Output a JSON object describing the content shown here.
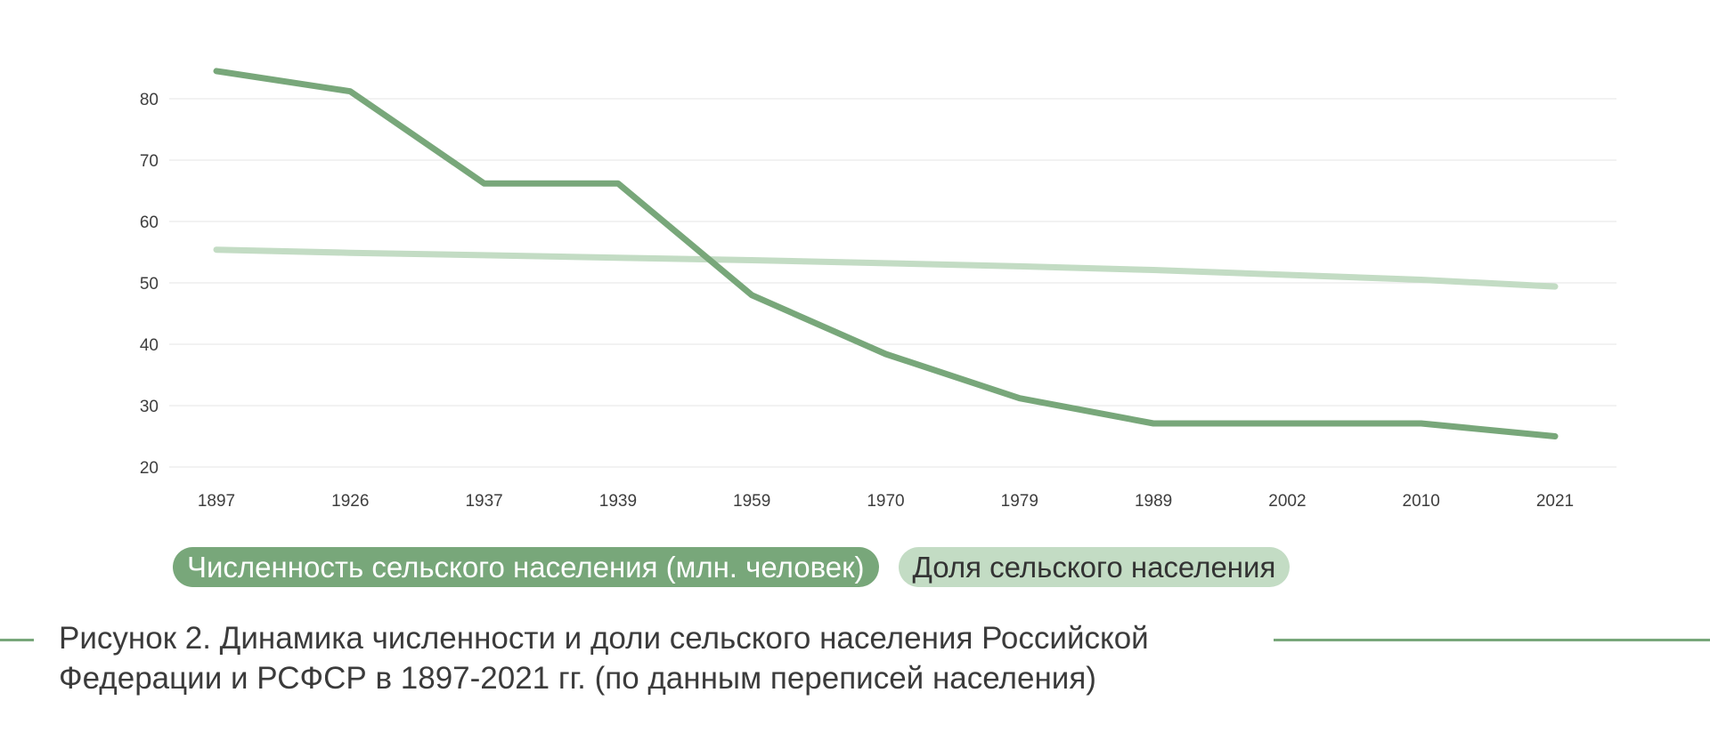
{
  "colors": {
    "series_dark": "#78a77a",
    "series_light": "#c3dcc4",
    "grid": "#e4e4e4",
    "caption_rule": "#78a77a"
  },
  "chart_data": {
    "type": "line",
    "x": [
      "1897",
      "1926",
      "1937",
      "1939",
      "1959",
      "1970",
      "1979",
      "1989",
      "2002",
      "2010",
      "2021"
    ],
    "ylim": [
      20,
      85
    ],
    "yticks": [
      20,
      30,
      40,
      50,
      60,
      70,
      80
    ],
    "grid": true,
    "legend_position": "bottom-left",
    "series": [
      {
        "name": "Численность сельского населения (млн. человек)",
        "color": "#78a77a",
        "values": [
          84.5,
          81.2,
          66.2,
          66.2,
          48.0,
          38.4,
          31.2,
          27.1,
          27.1,
          27.1,
          25.0
        ]
      },
      {
        "name": "Доля сельского населения",
        "color": "#c3dcc4",
        "values": [
          55.4,
          54.9,
          54.5,
          54.1,
          53.7,
          53.2,
          52.7,
          52.1,
          51.3,
          50.5,
          49.4
        ]
      }
    ]
  },
  "caption": {
    "line1": "Рисунок 2. Динамика численности и доли сельского населения Российской",
    "line2": "Федерации и РСФСР в 1897-2021 гг. (по данным переписей населения)"
  }
}
